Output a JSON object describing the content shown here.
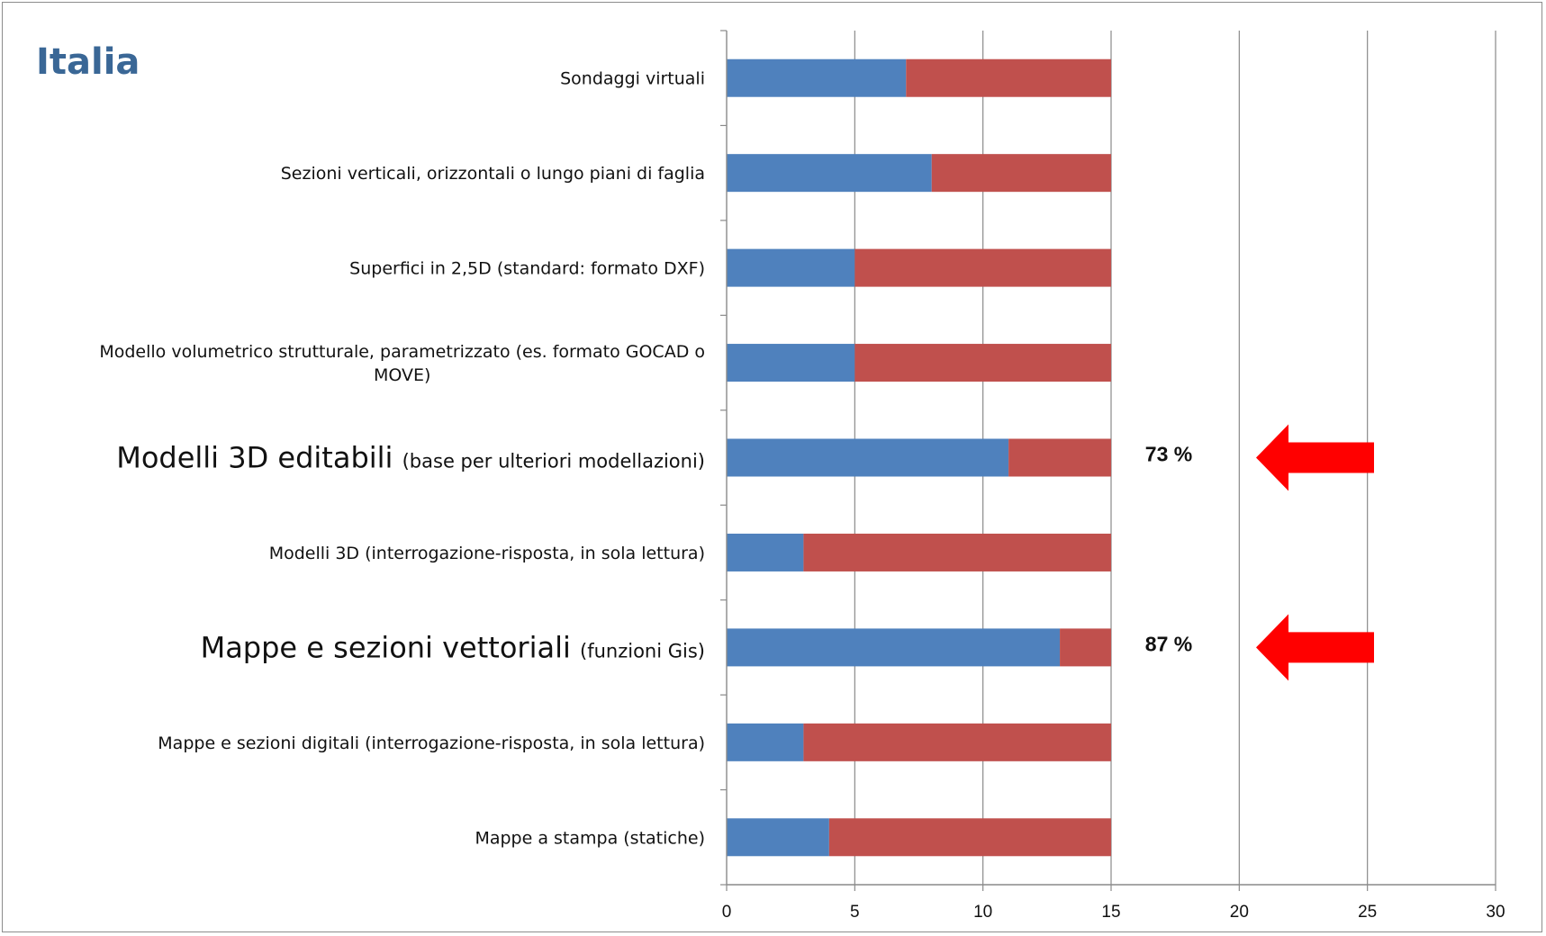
{
  "chart_data": {
    "type": "bar",
    "orientation": "horizontal",
    "stacked": true,
    "title": "Italia",
    "xlabel": "",
    "ylabel": "",
    "xlim": [
      0,
      30
    ],
    "x_ticks": [
      0,
      5,
      10,
      15,
      20,
      25,
      30
    ],
    "grid": "vertical",
    "legend": "none",
    "categories": [
      {
        "label": "Sondaggi virtuali",
        "big": ""
      },
      {
        "label": "Sezioni verticali, orizzontali o lungo piani di faglia",
        "big": ""
      },
      {
        "label": "Superfici in 2,5D (standard: formato DXF)",
        "big": ""
      },
      {
        "label": "Modello volumetrico strutturale, parametrizzato (es. formato GOCAD o\nMOVE)",
        "big": ""
      },
      {
        "label": "(base per ulteriori modellazioni)",
        "big": "Modelli 3D editabili"
      },
      {
        "label": "Modelli 3D (interrogazione-risposta, in sola lettura)",
        "big": ""
      },
      {
        "label": "(funzioni Gis)",
        "big": "Mappe e sezioni vettoriali"
      },
      {
        "label": "Mappe e sezioni digitali (interrogazione-risposta, in sola lettura)",
        "big": ""
      },
      {
        "label": "Mappe a stampa (statiche)",
        "big": ""
      }
    ],
    "series": [
      {
        "color": "#4f81bd",
        "values": [
          7,
          8,
          5,
          5,
          11,
          3,
          13,
          3,
          4
        ]
      },
      {
        "color": "#c0504d",
        "values": [
          8,
          7,
          10,
          10,
          4,
          12,
          2,
          12,
          11
        ]
      }
    ],
    "annotations": [
      {
        "category_index": 4,
        "text": "73 %",
        "arrow_color": "#ff0000"
      },
      {
        "category_index": 6,
        "text": "87 %",
        "arrow_color": "#ff0000"
      }
    ]
  }
}
